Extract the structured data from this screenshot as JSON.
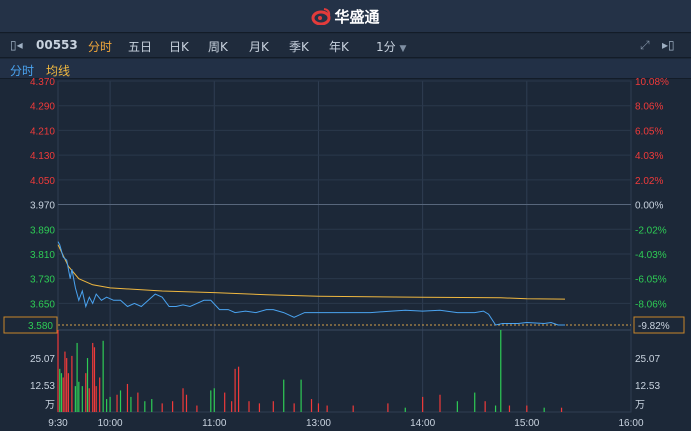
{
  "app": {
    "title": "华盛通",
    "logo_icon": "weibo-like-eye-logo"
  },
  "toolbar": {
    "code": "00553",
    "tabs": [
      "分时",
      "五日",
      "日K",
      "周K",
      "月K",
      "季K",
      "年K"
    ],
    "active_tab": "分时",
    "interval": "1分",
    "left_icon": "collapse-left-icon",
    "fullscreen_icon": "fullscreen-icon",
    "right_icon": "collapse-right-icon"
  },
  "legend": {
    "price": "分时",
    "avg": "均线",
    "price_color": "#4aa3f0",
    "avg_color": "#f0b840"
  },
  "chart_data": {
    "type": "line",
    "price_axis": {
      "ticks": [
        "4.370",
        "4.290",
        "4.210",
        "4.130",
        "4.050",
        "3.970",
        "3.890",
        "3.810",
        "3.730",
        "3.650",
        "3.580"
      ],
      "ylim": [
        3.58,
        4.37
      ],
      "prev_close": 3.97
    },
    "pct_axis": {
      "ticks": [
        "10.08%",
        "8.06%",
        "6.05%",
        "4.03%",
        "2.02%",
        "0.00%",
        "-2.02%",
        "-4.03%",
        "-6.05%",
        "-8.06%",
        "-9.82%"
      ]
    },
    "current_price": "3.580",
    "current_pct": "-9.82%",
    "time_ticks": [
      "9:30",
      "10:00",
      "11:00",
      "13:00",
      "14:00",
      "15:00",
      "16:00"
    ],
    "volume_axis": {
      "ticks": [
        "25.07",
        "12.53"
      ],
      "unit": "万"
    },
    "price_series": [
      [
        "9:30",
        3.85
      ],
      [
        "9:31",
        3.84
      ],
      [
        "9:33",
        3.8
      ],
      [
        "9:35",
        3.79
      ],
      [
        "9:37",
        3.73
      ],
      [
        "9:38",
        3.76
      ],
      [
        "9:40",
        3.7
      ],
      [
        "9:42",
        3.66
      ],
      [
        "9:44",
        3.69
      ],
      [
        "9:46",
        3.64
      ],
      [
        "9:48",
        3.67
      ],
      [
        "9:50",
        3.65
      ],
      [
        "9:52",
        3.68
      ],
      [
        "9:55",
        3.66
      ],
      [
        "9:58",
        3.67
      ],
      [
        "10:02",
        3.66
      ],
      [
        "10:06",
        3.66
      ],
      [
        "10:10",
        3.64
      ],
      [
        "10:14",
        3.65
      ],
      [
        "10:18",
        3.64
      ],
      [
        "10:22",
        3.66
      ],
      [
        "10:26",
        3.68
      ],
      [
        "10:30",
        3.67
      ],
      [
        "10:34",
        3.64
      ],
      [
        "10:38",
        3.64
      ],
      [
        "10:42",
        3.645
      ],
      [
        "10:46",
        3.64
      ],
      [
        "10:50",
        3.65
      ],
      [
        "10:54",
        3.66
      ],
      [
        "10:58",
        3.66
      ],
      [
        "11:03",
        3.63
      ],
      [
        "11:08",
        3.63
      ],
      [
        "11:12",
        3.62
      ],
      [
        "11:18",
        3.625
      ],
      [
        "11:24",
        3.62
      ],
      [
        "11:30",
        3.63
      ],
      [
        "11:34",
        3.63
      ],
      [
        "11:40",
        3.62
      ],
      [
        "11:46",
        3.605
      ],
      [
        "11:52",
        3.62
      ],
      [
        "11:58",
        3.62
      ],
      [
        "13:05",
        3.62
      ],
      [
        "13:30",
        3.62
      ],
      [
        "13:42",
        3.625
      ],
      [
        "13:50",
        3.628
      ],
      [
        "14:00",
        3.625
      ],
      [
        "14:10",
        3.628
      ],
      [
        "14:20",
        3.62
      ],
      [
        "14:30",
        3.62
      ],
      [
        "14:35",
        3.625
      ],
      [
        "14:38",
        3.615
      ],
      [
        "14:42",
        3.58
      ],
      [
        "14:46",
        3.585
      ],
      [
        "14:55",
        3.585
      ],
      [
        "15:00",
        3.588
      ],
      [
        "15:10",
        3.585
      ],
      [
        "15:14",
        3.588
      ],
      [
        "15:18",
        3.58
      ],
      [
        "15:22",
        3.58
      ]
    ],
    "avg_series": [
      [
        "9:30",
        3.84
      ],
      [
        "9:36",
        3.77
      ],
      [
        "9:42",
        3.73
      ],
      [
        "9:50",
        3.71
      ],
      [
        "10:00",
        3.7
      ],
      [
        "10:30",
        3.69
      ],
      [
        "11:00",
        3.685
      ],
      [
        "11:30",
        3.678
      ],
      [
        "13:00",
        3.673
      ],
      [
        "14:00",
        3.67
      ],
      [
        "14:45",
        3.668
      ],
      [
        "15:00",
        3.665
      ],
      [
        "15:22",
        3.664
      ]
    ],
    "volume_series": [
      [
        "9:30",
        38,
        "down"
      ],
      [
        "9:31",
        20,
        "up"
      ],
      [
        "9:32",
        18,
        "up"
      ],
      [
        "9:33",
        16,
        "down"
      ],
      [
        "9:34",
        28,
        "down"
      ],
      [
        "9:35",
        25,
        "down"
      ],
      [
        "9:36",
        18,
        "down"
      ],
      [
        "9:38",
        26,
        "down"
      ],
      [
        "9:40",
        12,
        "up"
      ],
      [
        "9:41",
        32,
        "up"
      ],
      [
        "9:42",
        14,
        "up"
      ],
      [
        "9:44",
        12,
        "up"
      ],
      [
        "9:46",
        18,
        "down"
      ],
      [
        "9:47",
        25,
        "up"
      ],
      [
        "9:48",
        11,
        "down"
      ],
      [
        "9:50",
        32,
        "down"
      ],
      [
        "9:51",
        30,
        "down"
      ],
      [
        "9:52",
        12,
        "down"
      ],
      [
        "9:54",
        16,
        "down"
      ],
      [
        "9:56",
        33,
        "up"
      ],
      [
        "9:58",
        6,
        "up"
      ],
      [
        "10:00",
        7,
        "up"
      ],
      [
        "10:04",
        8,
        "down"
      ],
      [
        "10:06",
        10,
        "up"
      ],
      [
        "10:10",
        13,
        "down"
      ],
      [
        "10:12",
        7,
        "up"
      ],
      [
        "10:16",
        9,
        "down"
      ],
      [
        "10:20",
        5,
        "up"
      ],
      [
        "10:24",
        6,
        "up"
      ],
      [
        "10:30",
        4,
        "down"
      ],
      [
        "10:36",
        5,
        "down"
      ],
      [
        "10:42",
        11,
        "down"
      ],
      [
        "10:44",
        8,
        "down"
      ],
      [
        "10:50",
        3,
        "down"
      ],
      [
        "10:58",
        10,
        "up"
      ],
      [
        "11:00",
        11,
        "up"
      ],
      [
        "11:06",
        9,
        "down"
      ],
      [
        "11:10",
        5,
        "down"
      ],
      [
        "11:12",
        20,
        "down"
      ],
      [
        "11:14",
        21,
        "down"
      ],
      [
        "11:20",
        5,
        "down"
      ],
      [
        "11:26",
        4,
        "down"
      ],
      [
        "11:34",
        5,
        "down"
      ],
      [
        "11:40",
        15,
        "up"
      ],
      [
        "11:46",
        4,
        "down"
      ],
      [
        "11:50",
        15,
        "up"
      ],
      [
        "11:56",
        6,
        "down"
      ],
      [
        "12:00",
        4,
        "down"
      ],
      [
        "13:05",
        3,
        "down"
      ],
      [
        "13:20",
        3,
        "down"
      ],
      [
        "13:40",
        4,
        "down"
      ],
      [
        "13:50",
        2,
        "up"
      ],
      [
        "14:00",
        7,
        "down"
      ],
      [
        "14:10",
        8,
        "down"
      ],
      [
        "14:20",
        5,
        "up"
      ],
      [
        "14:30",
        9,
        "up"
      ],
      [
        "14:36",
        5,
        "down"
      ],
      [
        "14:42",
        3,
        "up"
      ],
      [
        "14:45",
        38,
        "up"
      ],
      [
        "14:50",
        3,
        "down"
      ],
      [
        "15:00",
        3,
        "down"
      ],
      [
        "15:10",
        2,
        "up"
      ],
      [
        "15:20",
        2,
        "down"
      ]
    ]
  }
}
